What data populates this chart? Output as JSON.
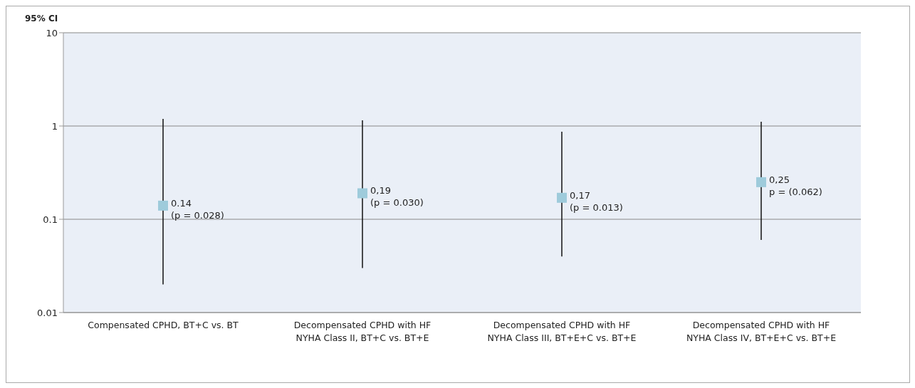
{
  "chart_data": {
    "type": "scatter",
    "ylabel": "95% CI",
    "categories": [
      "Compensated CPHD, BT+C vs. BT",
      "Decompensated CPHD with HF NYHA Class II, BT+C vs. BT+E",
      "Decompensated CPHD with HF NYHA Class III, BT+E+C vs. BT+E",
      "Decompensated CPHD with HF NYHA Class IV, BT+E+C vs. BT+E"
    ],
    "values": [
      0.14,
      0.19,
      0.17,
      0.25
    ],
    "errors": [
      [
        0.02,
        1.19
      ],
      [
        0.03,
        1.15
      ],
      [
        0.04,
        0.87
      ],
      [
        0.06,
        1.11
      ]
    ],
    "value_labels": [
      "0.14",
      "0,19",
      "0,17",
      "0,25"
    ],
    "annotations": [
      {
        "text": "(p = 0.028)",
        "x": "Compensated CPHD, BT+C vs. BT",
        "y": 0.14
      },
      {
        "text": "(p = 0.030)",
        "x": "Decompensated CPHD with HF NYHA Class II, BT+C vs. BT+E",
        "y": 0.19
      },
      {
        "text": "(p = 0.013)",
        "x": "Decompensated CPHD with HF NYHA Class III, BT+E+C vs. BT+E",
        "y": 0.17
      },
      {
        "text": "p = (0.062)",
        "x": "Decompensated CPHD with HF NYHA Class IV, BT+E+C vs. BT+E",
        "y": 0.25
      }
    ],
    "color": "#9ecbdb",
    "marker": "square",
    "log": "y",
    "grid": "y",
    "ylim": [
      0.01,
      10
    ],
    "yticks": [
      0.01,
      0.1,
      1,
      10
    ]
  }
}
